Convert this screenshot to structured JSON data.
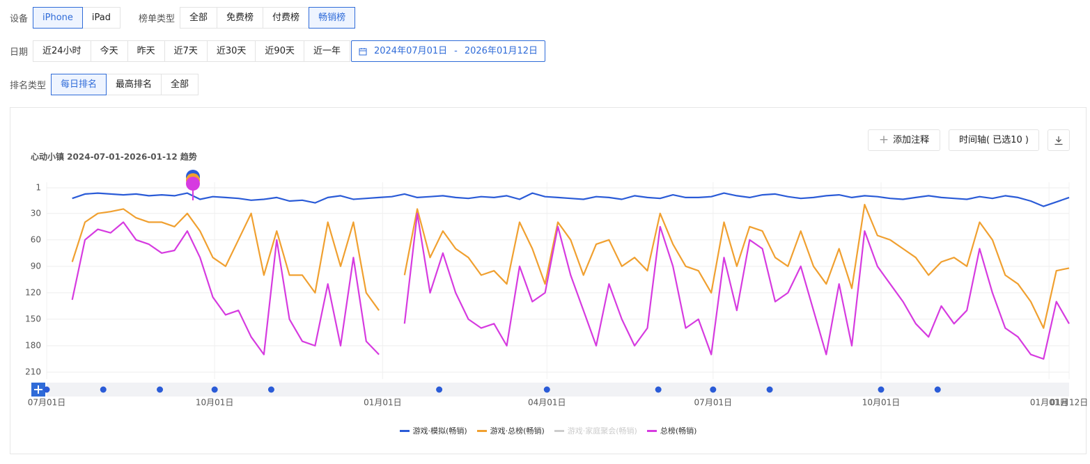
{
  "filters": {
    "device": {
      "label": "设备",
      "options": [
        "iPhone",
        "iPad"
      ],
      "selected": 0
    },
    "chart_type": {
      "label": "榜单类型",
      "options": [
        "全部",
        "免费榜",
        "付费榜",
        "畅销榜"
      ],
      "selected": 3
    },
    "date": {
      "label": "日期",
      "options": [
        "近24小时",
        "今天",
        "昨天",
        "近7天",
        "近30天",
        "近90天",
        "近一年"
      ],
      "range_start": "2024年07月01日",
      "range_sep": "-",
      "range_end": "2026年01月12日"
    },
    "rank_type": {
      "label": "排名类型",
      "options": [
        "每日排名",
        "最高排名",
        "全部"
      ],
      "selected": 0
    }
  },
  "toolbar": {
    "add_note": "添加注释",
    "timeline": "时间轴( 已选10 )"
  },
  "chart_data": {
    "type": "line",
    "title": "心动小镇 2024-07-01-2026-01-12 趋势",
    "xlim": [
      0,
      560
    ],
    "xticks": [
      {
        "value": 0,
        "label": "07月01日"
      },
      {
        "value": 92,
        "label": "10月01日"
      },
      {
        "value": 184,
        "label": "01月01日"
      },
      {
        "value": 274,
        "label": "04月01日"
      },
      {
        "value": 365,
        "label": "07月01日"
      },
      {
        "value": 457,
        "label": "10月01日"
      },
      {
        "value": 549,
        "label": "01月01日"
      },
      {
        "value": 560,
        "label": "01月12日"
      }
    ],
    "ylim": [
      210,
      1
    ],
    "yticks": [
      1,
      30,
      60,
      90,
      120,
      150,
      180,
      210
    ],
    "grid": true,
    "timeline_markers": [
      0,
      31,
      62,
      92,
      123,
      215,
      274,
      335,
      365,
      396,
      457,
      488
    ],
    "x": [
      14,
      21,
      28,
      35,
      42,
      49,
      56,
      63,
      70,
      77,
      84,
      91,
      98,
      105,
      112,
      119,
      126,
      133,
      140,
      147,
      154,
      161,
      168,
      175,
      182,
      189,
      196,
      203,
      210,
      217,
      224,
      231,
      238,
      245,
      252,
      259,
      266,
      273,
      280,
      287,
      294,
      301,
      308,
      315,
      322,
      329,
      336,
      343,
      350,
      357,
      364,
      371,
      378,
      385,
      392,
      399,
      406,
      413,
      420,
      427,
      434,
      441,
      448,
      455,
      462,
      469,
      476,
      483,
      490,
      497,
      504,
      511,
      518,
      525,
      532,
      539,
      546,
      553,
      560
    ],
    "series": [
      {
        "name": "游戏·模拟(畅销)",
        "color": "#2a5bd7",
        "values": [
          13,
          8,
          7,
          8,
          9,
          8,
          10,
          9,
          10,
          7,
          14,
          11,
          12,
          13,
          15,
          14,
          12,
          16,
          15,
          18,
          12,
          10,
          14,
          13,
          12,
          11,
          8,
          12,
          11,
          10,
          12,
          13,
          11,
          12,
          10,
          14,
          7,
          11,
          12,
          13,
          14,
          11,
          12,
          14,
          10,
          12,
          13,
          9,
          12,
          12,
          11,
          7,
          10,
          12,
          9,
          8,
          11,
          13,
          12,
          10,
          9,
          12,
          10,
          11,
          13,
          14,
          12,
          10,
          12,
          13,
          14,
          11,
          13,
          10,
          12,
          16,
          22,
          17,
          12
        ]
      },
      {
        "name": "游戏·总榜(畅销)",
        "color": "#f0a030",
        "values": [
          85,
          40,
          30,
          28,
          25,
          35,
          40,
          40,
          45,
          30,
          50,
          80,
          90,
          60,
          30,
          100,
          50,
          100,
          100,
          120,
          40,
          90,
          40,
          120,
          140,
          null,
          100,
          25,
          80,
          50,
          70,
          80,
          100,
          95,
          110,
          40,
          70,
          110,
          40,
          60,
          100,
          65,
          60,
          90,
          80,
          95,
          30,
          65,
          90,
          95,
          120,
          40,
          90,
          45,
          50,
          80,
          90,
          50,
          90,
          110,
          70,
          115,
          20,
          55,
          60,
          70,
          80,
          100,
          85,
          80,
          90,
          40,
          60,
          100,
          110,
          130,
          160,
          95,
          92
        ]
      },
      {
        "name": "游戏·家庭聚会(畅销)",
        "color": "#cccccc",
        "hidden": true
      },
      {
        "name": "总榜(畅销)",
        "color": "#d63be0",
        "values": [
          128,
          60,
          48,
          52,
          40,
          60,
          65,
          75,
          72,
          50,
          80,
          125,
          145,
          140,
          170,
          190,
          60,
          150,
          175,
          180,
          110,
          180,
          80,
          175,
          190,
          null,
          155,
          30,
          120,
          75,
          120,
          150,
          160,
          155,
          180,
          90,
          130,
          120,
          45,
          100,
          140,
          180,
          110,
          150,
          180,
          160,
          45,
          90,
          160,
          150,
          190,
          80,
          140,
          60,
          70,
          130,
          120,
          90,
          140,
          190,
          110,
          180,
          50,
          90,
          110,
          130,
          155,
          170,
          135,
          155,
          140,
          70,
          120,
          160,
          170,
          190,
          195,
          130,
          155
        ]
      }
    ]
  }
}
